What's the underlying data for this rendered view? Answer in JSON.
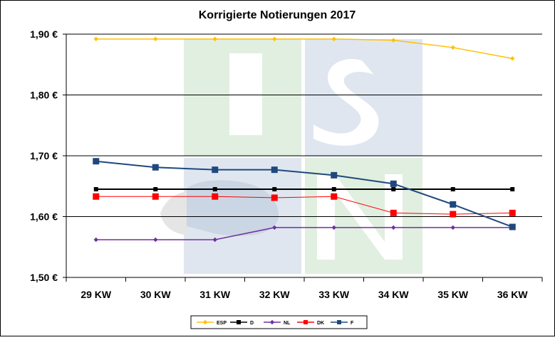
{
  "chart_data": {
    "type": "line",
    "title": "Korrigierte Notierungen 2017",
    "xlabel": "",
    "ylabel": "",
    "categories": [
      "29 KW",
      "30 KW",
      "31 KW",
      "32 KW",
      "33 KW",
      "34 KW",
      "35 KW",
      "36 KW"
    ],
    "ylim": [
      1.5,
      1.9
    ],
    "yticks": [
      1.5,
      1.6,
      1.7,
      1.8,
      1.9
    ],
    "ytick_labels": [
      "1,50 €",
      "1,60 €",
      "1,70 €",
      "1,80 €",
      "1,90 €"
    ],
    "grid": true,
    "legend_position": "bottom",
    "series": [
      {
        "name": "ESP",
        "color": "#FFC000",
        "marker": "diamond",
        "values": [
          1.892,
          1.892,
          1.892,
          1.892,
          1.892,
          1.89,
          1.878,
          1.86
        ]
      },
      {
        "name": "D",
        "color": "#000000",
        "marker": "square-small",
        "values": [
          1.645,
          1.645,
          1.645,
          1.645,
          1.645,
          1.645,
          1.645,
          1.645
        ]
      },
      {
        "name": "NL",
        "color": "#7030A0",
        "marker": "diamond",
        "values": [
          1.562,
          1.562,
          1.562,
          1.582,
          1.582,
          1.582,
          1.582,
          1.582
        ]
      },
      {
        "name": "DK",
        "color": "#FF0000",
        "marker": "square",
        "values": [
          1.633,
          1.633,
          1.633,
          1.631,
          1.633,
          1.606,
          1.604,
          1.606
        ]
      },
      {
        "name": "F",
        "color": "#1F497D",
        "marker": "square",
        "values": [
          1.691,
          1.681,
          1.677,
          1.677,
          1.668,
          1.654,
          1.62,
          1.583
        ]
      }
    ],
    "watermark": "ISN"
  }
}
